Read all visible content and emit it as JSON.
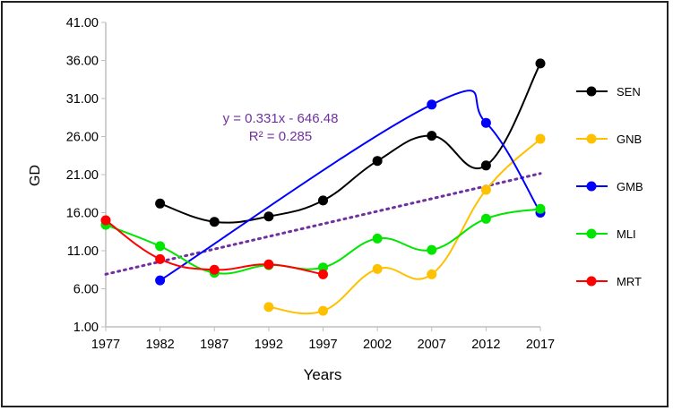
{
  "chart_data": {
    "type": "line",
    "xlabel": "Years",
    "ylabel": "GD",
    "xlim": [
      1977,
      2017
    ],
    "ylim": [
      1,
      41
    ],
    "x_ticks": [
      "1977",
      "1982",
      "1987",
      "1992",
      "1997",
      "2002",
      "2007",
      "2012",
      "2017"
    ],
    "y_ticks": [
      "1.00",
      "6.00",
      "11.00",
      "16.00",
      "21.00",
      "26.00",
      "31.00",
      "36.00",
      "41.00"
    ],
    "grid": false,
    "legend_position": "right",
    "smoothed": true,
    "series": [
      {
        "name": "SEN",
        "color": "#000000",
        "x": [
          1982,
          1987,
          1992,
          1997,
          2002,
          2007,
          2012,
          2017
        ],
        "values": [
          17.2,
          14.8,
          15.5,
          17.6,
          22.8,
          26.1,
          22.2,
          35.6
        ]
      },
      {
        "name": "GNB",
        "color": "#FFC000",
        "x": [
          1992,
          1997,
          2002,
          2007,
          2012,
          2017
        ],
        "values": [
          3.6,
          3.1,
          8.6,
          7.9,
          19.0,
          25.7
        ]
      },
      {
        "name": "GMB",
        "color": "#0000FF",
        "x": [
          1982,
          2007,
          2012,
          2017
        ],
        "values": [
          7.1,
          30.2,
          27.8,
          16.0
        ]
      },
      {
        "name": "MLI",
        "color": "#00E600",
        "x": [
          1977,
          1982,
          1987,
          1992,
          1997,
          2002,
          2007,
          2012,
          2017
        ],
        "values": [
          14.4,
          11.6,
          8.1,
          9.1,
          8.8,
          12.6,
          11.1,
          15.2,
          16.5
        ]
      },
      {
        "name": "MRT",
        "color": "#FF0000",
        "x": [
          1977,
          1982,
          1987,
          1992,
          1997
        ],
        "values": [
          15.0,
          9.9,
          8.5,
          9.2,
          7.9
        ]
      }
    ],
    "trendline": {
      "slope": 0.331,
      "intercept": -646.48,
      "color": "#7030A0",
      "style": "dotted",
      "equation": "y = 0.331x - 646.48",
      "r2": "R² = 0.285"
    }
  }
}
